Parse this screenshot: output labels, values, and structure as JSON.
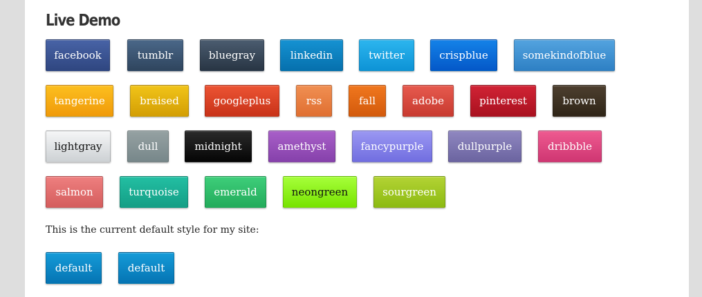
{
  "title": "Live Demo",
  "note": "This is the current default style for my site:",
  "rows": [
    [
      {
        "label": "facebook",
        "top": "#4863a6",
        "bottom": "#2f4680"
      },
      {
        "label": "tumblr",
        "top": "#4a6788",
        "bottom": "#2f455e"
      },
      {
        "label": "bluegray",
        "top": "#4b5c70",
        "bottom": "#283544"
      },
      {
        "label": "linkedin",
        "top": "#1592d2",
        "bottom": "#0670ad"
      },
      {
        "label": "twitter",
        "top": "#2cb5ee",
        "bottom": "#0d93d6"
      },
      {
        "label": "crispblue",
        "top": "#1482e8",
        "bottom": "#0458c8"
      },
      {
        "label": "somekindofblue",
        "top": "#53a3df",
        "bottom": "#2e80c4"
      }
    ],
    [
      {
        "label": "tangerine",
        "top": "#fcbf1f",
        "bottom": "#f09a0a"
      },
      {
        "label": "braised",
        "top": "#f1c419",
        "bottom": "#d39e04"
      },
      {
        "label": "googleplus",
        "top": "#ec5434",
        "bottom": "#c83218"
      },
      {
        "label": "rss",
        "top": "#f08f52",
        "bottom": "#e06f31"
      },
      {
        "label": "fall",
        "top": "#f0771e",
        "bottom": "#d35a0c"
      },
      {
        "label": "adobe",
        "top": "#e65a4e",
        "bottom": "#c83a30"
      },
      {
        "label": "pinterest",
        "top": "#d12335",
        "bottom": "#a9111f"
      },
      {
        "label": "brown",
        "top": "#4d3f2f",
        "bottom": "#2f2517"
      }
    ],
    [
      {
        "label": "lightgray",
        "top": "#f5f6f7",
        "bottom": "#cdd1d4",
        "dark": true
      },
      {
        "label": "dull",
        "top": "#95a1a2",
        "bottom": "#77878a"
      },
      {
        "label": "midnight",
        "top": "#2a2a2a",
        "bottom": "#050505"
      },
      {
        "label": "amethyst",
        "top": "#a85fc8",
        "bottom": "#8641ab"
      },
      {
        "label": "fancypurple",
        "top": "#9a97f2",
        "bottom": "#716ee0"
      },
      {
        "label": "dullpurple",
        "top": "#8f87c0",
        "bottom": "#6b64a0"
      },
      {
        "label": "dribbble",
        "top": "#ee5a90",
        "bottom": "#cf3672"
      }
    ],
    [
      {
        "label": "salmon",
        "top": "#ee7f7f",
        "bottom": "#d45d5d"
      },
      {
        "label": "turquoise",
        "top": "#23bfa3",
        "bottom": "#149e85"
      },
      {
        "label": "emerald",
        "top": "#3ece7a",
        "bottom": "#23ab5b"
      },
      {
        "label": "neongreen",
        "top": "#a6ff3a",
        "bottom": "#77e300",
        "dark": true
      },
      {
        "label": "sourgreen",
        "top": "#b3d334",
        "bottom": "#8cba12"
      }
    ],
    [
      {
        "label": "default",
        "top": "#159bd8",
        "bottom": "#0574b3"
      },
      {
        "label": "default",
        "top": "#159bd8",
        "bottom": "#0574b3"
      }
    ]
  ]
}
